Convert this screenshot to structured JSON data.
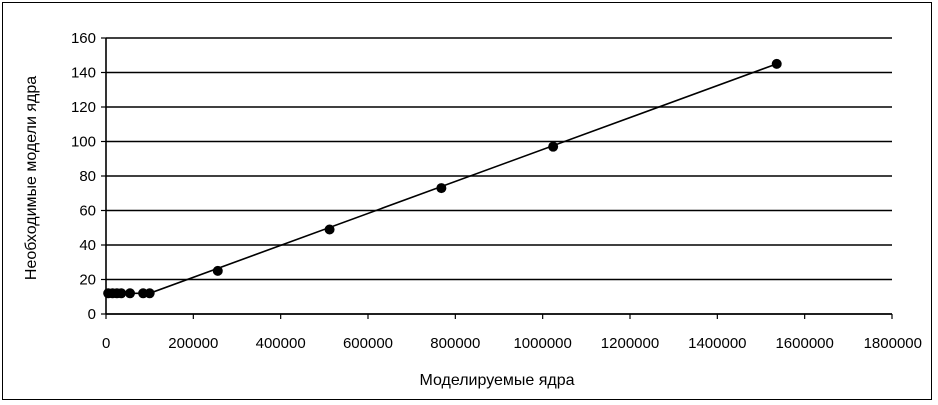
{
  "chart_data": {
    "type": "scatter",
    "title": "",
    "xlabel": "Моделируемые ядра",
    "ylabel": "Необходимые модели ядра",
    "xlim": [
      0,
      1800000
    ],
    "ylim": [
      0,
      160
    ],
    "x_ticks": [
      0,
      200000,
      400000,
      600000,
      800000,
      1000000,
      1200000,
      1400000,
      1600000,
      1800000
    ],
    "y_ticks": [
      0,
      20,
      40,
      60,
      80,
      100,
      120,
      140,
      160
    ],
    "x_tick_labels": [
      "0",
      "200000",
      "400000",
      "600000",
      "800000",
      "1000000",
      "1200000",
      "1400000",
      "1600000",
      "1800000"
    ],
    "y_tick_labels": [
      "0",
      "20",
      "40",
      "60",
      "80",
      "100",
      "120",
      "140",
      "160"
    ],
    "grid": "horizontal",
    "legend": "none",
    "series": [
      {
        "points": [
          [
            5000,
            12
          ],
          [
            15000,
            12
          ],
          [
            25000,
            12
          ],
          [
            35000,
            12
          ],
          [
            55000,
            12
          ],
          [
            85000,
            12
          ],
          [
            100000,
            12
          ],
          [
            256000,
            25
          ],
          [
            512000,
            49
          ],
          [
            768000,
            73
          ],
          [
            1024000,
            97
          ],
          [
            1536000,
            145
          ]
        ],
        "trendline": [
          [
            100000,
            12
          ],
          [
            1536000,
            145
          ]
        ]
      }
    ],
    "colors": {
      "marker": "#000000",
      "line": "#000000",
      "grid": "#000000"
    }
  }
}
